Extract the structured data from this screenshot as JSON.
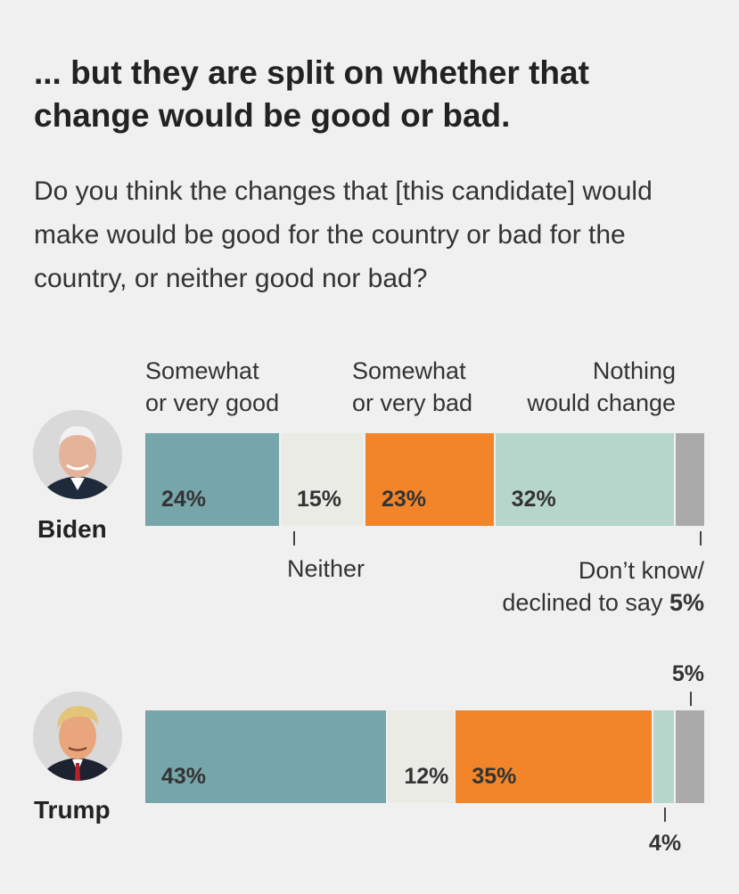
{
  "title": "... but they are split on whether that change would be good or bad.",
  "question": "Do you think the changes that [this candidate] would make would be good for the country or bad for the country, or neither good nor bad?",
  "columns": {
    "good": [
      "Somewhat",
      "or very good"
    ],
    "bad": [
      "Somewhat",
      "or very bad"
    ],
    "nothing": [
      "Nothing",
      "would change"
    ]
  },
  "annotations": {
    "neither": "Neither",
    "dontknow_line1": "Don’t know/",
    "dontknow_line2": "declined to say",
    "dontknow_value": "5%",
    "trump_dk_value": "5%",
    "trump_nothing_value": "4%"
  },
  "colors": {
    "good": "#76a5aa",
    "neither": "#ebebe6",
    "bad": "#f28529",
    "nothing": "#b6d5cb",
    "dontknow": "#aaaaaa"
  },
  "chart_data": {
    "type": "bar",
    "orientation": "horizontal-stacked-100",
    "categories": [
      "Biden",
      "Trump"
    ],
    "series": [
      {
        "name": "Somewhat or very good",
        "values": [
          24,
          43
        ]
      },
      {
        "name": "Neither",
        "values": [
          15,
          12
        ]
      },
      {
        "name": "Somewhat or very bad",
        "values": [
          23,
          35
        ]
      },
      {
        "name": "Nothing would change",
        "values": [
          32,
          4
        ]
      },
      {
        "name": "Don’t know/declined to say",
        "values": [
          5,
          5
        ]
      }
    ],
    "bar_labels": [
      [
        "24%",
        "15%",
        "23%",
        "32%",
        ""
      ],
      [
        "43%",
        "12%",
        "35%",
        "",
        ""
      ]
    ]
  }
}
